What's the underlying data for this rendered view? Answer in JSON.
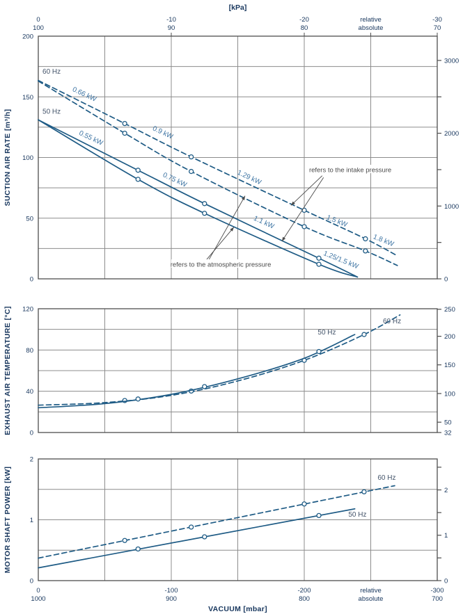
{
  "figure": {
    "top_axis": {
      "title": "[kPa]",
      "rows": [
        {
          "name": "relative",
          "labels": [
            {
              "at": 0,
              "text": "0"
            },
            {
              "at": -100,
              "text": "-10"
            },
            {
              "at": -200,
              "text": "-20"
            },
            {
              "at": -250,
              "text": "relative"
            },
            {
              "at": -300,
              "text": "-30"
            }
          ]
        },
        {
          "name": "absolute",
          "labels": [
            {
              "at": 0,
              "text": "100"
            },
            {
              "at": -100,
              "text": "90"
            },
            {
              "at": -200,
              "text": "80"
            },
            {
              "at": -250,
              "text": "absolute"
            },
            {
              "at": -300,
              "text": "70"
            }
          ]
        }
      ]
    },
    "bottom_axis": {
      "title": "VACUUM [mbar]",
      "rows": [
        {
          "name": "relative",
          "labels": [
            {
              "at": 0,
              "text": "0"
            },
            {
              "at": -100,
              "text": "-100"
            },
            {
              "at": -200,
              "text": "-200"
            },
            {
              "at": -250,
              "text": "relative"
            },
            {
              "at": -300,
              "text": "-300"
            }
          ]
        },
        {
          "name": "absolute",
          "labels": [
            {
              "at": 0,
              "text": "1000"
            },
            {
              "at": -100,
              "text": "900"
            },
            {
              "at": -200,
              "text": "800"
            },
            {
              "at": -250,
              "text": "absolute"
            },
            {
              "at": -300,
              "text": "700"
            }
          ]
        }
      ]
    },
    "colors": {
      "curve": "#1e5b85",
      "kw_label": "#3d74a3",
      "hz_label": "#44546a",
      "tick_label": "#17365d",
      "grid": "#8c8c8c",
      "frame": "#4d4d4d",
      "annotation": "#4a4a4a",
      "background": "#ffffff"
    }
  },
  "chart_data": [
    {
      "type": "line",
      "id": "suction-air-rate",
      "ylabel": "SUCTION AIR RATE  [m³/h]",
      "xlabel": "VACUUM [mbar]",
      "xlim": [
        0,
        -300
      ],
      "x_grid_step": 50,
      "ylim": [
        0,
        200
      ],
      "y_grid_step": 25,
      "y_tick_labels": [
        200,
        150,
        100,
        50,
        0
      ],
      "right_axis_ticks": [
        {
          "at": 0,
          "label": "0"
        },
        {
          "at": 30
        },
        {
          "at": 60,
          "label": "1000"
        },
        {
          "at": 90
        },
        {
          "at": 120,
          "label": "2000"
        },
        {
          "at": 150
        },
        {
          "at": 180,
          "label": "3000"
        }
      ],
      "series": [
        {
          "id": "60hz-intake",
          "name": "60 Hz (refers to the intake pressure)",
          "style": "dashed",
          "points": [
            [
              0,
              163.5
            ],
            [
              -65,
              128
            ],
            [
              -115,
              100.5
            ],
            [
              -200,
              56.5
            ],
            [
              -246,
              33
            ],
            [
              -270,
              19
            ]
          ],
          "markers": [
            [
              -65,
              128
            ],
            [
              -115,
              100.5
            ],
            [
              -200,
              56.5
            ],
            [
              -246,
              33
            ]
          ]
        },
        {
          "id": "60hz-atmospheric",
          "name": "60 Hz (refers to the atmospheric pressure)",
          "style": "dashed",
          "points": [
            [
              0,
              163
            ],
            [
              -65,
              120
            ],
            [
              -115,
              88.5
            ],
            [
              -200,
              43
            ],
            [
              -246,
              23
            ],
            [
              -270,
              11
            ]
          ],
          "markers": [
            [
              -65,
              120
            ],
            [
              -115,
              88.5
            ],
            [
              -200,
              43
            ],
            [
              -246,
              23
            ]
          ]
        },
        {
          "id": "50hz-intake",
          "name": "50 Hz (refers to the intake pressure)",
          "style": "solid",
          "points": [
            [
              0,
              131
            ],
            [
              -75,
              89.5
            ],
            [
              -125,
              62
            ],
            [
              -211,
              17
            ],
            [
              -240,
              1.5
            ]
          ],
          "markers": [
            [
              -75,
              89.5
            ],
            [
              -125,
              62
            ],
            [
              -211,
              17
            ]
          ]
        },
        {
          "id": "50hz-atmospheric",
          "name": "50 Hz (refers to the atmospheric pressure)",
          "style": "solid",
          "points": [
            [
              0,
              131
            ],
            [
              -75,
              82
            ],
            [
              -125,
              54
            ],
            [
              -211,
              12
            ],
            [
              -240,
              1.5
            ]
          ],
          "markers": [
            [
              -75,
              82
            ],
            [
              -125,
              54
            ],
            [
              -211,
              12
            ]
          ]
        }
      ],
      "curve_labels": [
        {
          "text": "60 Hz",
          "x": -10,
          "y": 169,
          "angle": 0,
          "kind": "hz"
        },
        {
          "text": "50 Hz",
          "x": -10,
          "y": 136,
          "angle": 0,
          "kind": "hz"
        },
        {
          "text": "0.66 kW",
          "x": -34,
          "y": 150.5,
          "angle": 25,
          "kind": "kw"
        },
        {
          "text": "0.9 kW",
          "x": -93,
          "y": 119,
          "angle": 25,
          "kind": "kw"
        },
        {
          "text": "1.29 kW",
          "x": -158,
          "y": 82,
          "angle": 25,
          "kind": "kw"
        },
        {
          "text": "1.5 kW",
          "x": -224,
          "y": 46,
          "angle": 22,
          "kind": "kw"
        },
        {
          "text": "1.8 kW",
          "x": -259,
          "y": 30,
          "angle": 22,
          "kind": "kw"
        },
        {
          "text": "0.55 kW",
          "x": -39,
          "y": 114.5,
          "angle": 25,
          "kind": "kw"
        },
        {
          "text": "0.75 kW",
          "x": -102,
          "y": 80,
          "angle": 25,
          "kind": "kw"
        },
        {
          "text": "1.1 kW",
          "x": -169,
          "y": 45,
          "angle": 25,
          "kind": "kw"
        },
        {
          "text": "1.25/1.5 kW",
          "x": -227,
          "y": 14,
          "angle": 22,
          "kind": "kw"
        }
      ],
      "annotations": [
        {
          "text": "refers to the intake pressure",
          "x": -234.6,
          "y": 89.4,
          "arrows": [
            {
              "from": [
                -213.5,
                85
              ],
              "to": [
                -190,
                60.5
              ]
            },
            {
              "from": [
                -214.5,
                83.5
              ],
              "to": [
                -183.2,
                31
              ]
            }
          ]
        },
        {
          "text": "refers to the atmospheric pressure",
          "x": -137.2,
          "y": 11.5,
          "arrows": [
            {
              "from": [
                -128.3,
                15.8
              ],
              "to": [
                -155.5,
                68.4
              ]
            },
            {
              "from": [
                -126.5,
                15.8
              ],
              "to": [
                -147.1,
                42.6
              ]
            }
          ]
        }
      ]
    },
    {
      "type": "line",
      "id": "exhaust-air-temperature",
      "ylabel": "EXHAUST AIR TEMPERATURE  [°C]",
      "xlim": [
        0,
        -300
      ],
      "x_grid_step": 50,
      "ylim": [
        0,
        120
      ],
      "y_grid_step": 20,
      "y_tick_labels": [
        120,
        80,
        40,
        0
      ],
      "right_axis_ticks": [
        {
          "at": 0,
          "label": "32"
        },
        {
          "at": 10,
          "label": "50"
        },
        {
          "at": 37.8,
          "label": "100"
        },
        {
          "at": 65.6,
          "label": "150"
        },
        {
          "at": 93.3,
          "label": "200"
        },
        {
          "at": 119.5,
          "label": "250"
        }
      ],
      "series": [
        {
          "id": "60hz",
          "name": "60 Hz",
          "style": "dashed",
          "points": [
            [
              0,
              26.5
            ],
            [
              -50,
              29
            ],
            [
              -100,
              36
            ],
            [
              -150,
              50
            ],
            [
              -200,
              70
            ],
            [
              -245,
              95
            ],
            [
              -272,
              114
            ]
          ],
          "markers": [
            [
              -65,
              31
            ],
            [
              -115,
              40.2
            ],
            [
              -200,
              70
            ],
            [
              -245,
              95
            ]
          ]
        },
        {
          "id": "50hz",
          "name": "50 Hz",
          "style": "solid",
          "points": [
            [
              0,
              24
            ],
            [
              -50,
              28
            ],
            [
              -100,
              37
            ],
            [
              -150,
              52
            ],
            [
              -200,
              72
            ],
            [
              -238,
              95
            ]
          ],
          "markers": [
            [
              -75,
              32.5
            ],
            [
              -125,
              44.5
            ],
            [
              -211,
              78.5
            ]
          ]
        }
      ],
      "curve_labels": [
        {
          "text": "50 Hz",
          "x": -217,
          "y": 95,
          "angle": 0,
          "kind": "hz"
        },
        {
          "text": "60 Hz",
          "x": -266,
          "y": 106,
          "angle": 0,
          "kind": "hz"
        }
      ],
      "annotations": []
    },
    {
      "type": "line",
      "id": "motor-shaft-power",
      "ylabel": "MOTOR SHAFT POWER  [kW]",
      "xlim": [
        0,
        -300
      ],
      "x_grid_step": 50,
      "ylim": [
        0,
        2
      ],
      "y_grid_step": 0.5,
      "y_tick_labels": [
        2,
        1,
        0
      ],
      "right_axis_ticks": [
        {
          "at": 0,
          "label": "0"
        },
        {
          "at": 0.373
        },
        {
          "at": 0.746,
          "label": "1"
        },
        {
          "at": 1.118
        },
        {
          "at": 1.491,
          "label": "2"
        },
        {
          "at": 1.864
        }
      ],
      "series": [
        {
          "id": "60hz",
          "name": "60 Hz",
          "style": "dashed",
          "points": [
            [
              0,
              0.37
            ],
            [
              -268,
              1.56
            ]
          ],
          "markers": [
            [
              -65,
              0.66
            ],
            [
              -115,
              0.88
            ],
            [
              -200,
              1.26
            ],
            [
              -245,
              1.46
            ]
          ]
        },
        {
          "id": "50hz",
          "name": "50 Hz",
          "style": "solid",
          "points": [
            [
              0,
              0.21
            ],
            [
              -238,
              1.18
            ]
          ],
          "markers": [
            [
              -75,
              0.52
            ],
            [
              -125,
              0.72
            ],
            [
              -211,
              1.07
            ]
          ]
        }
      ],
      "curve_labels": [
        {
          "text": "60 Hz",
          "x": -262,
          "y": 1.66,
          "angle": 0,
          "kind": "hz"
        },
        {
          "text": "50 Hz",
          "x": -240,
          "y": 1.05,
          "angle": 0,
          "kind": "hz"
        }
      ],
      "annotations": []
    }
  ]
}
